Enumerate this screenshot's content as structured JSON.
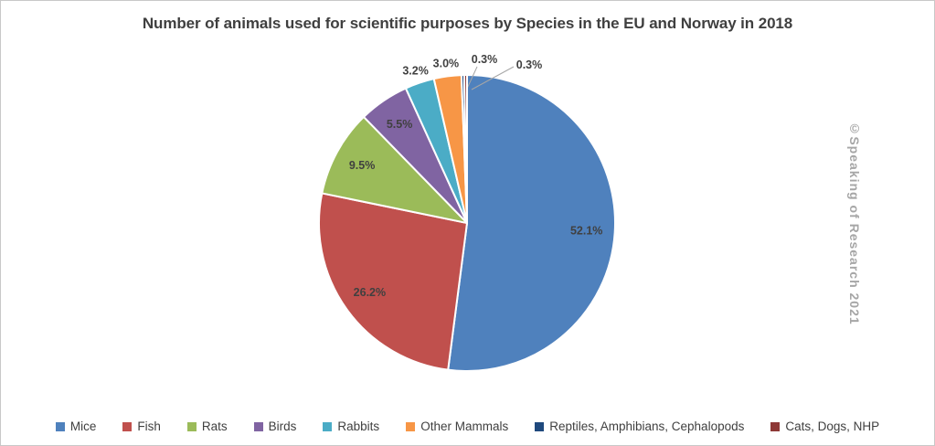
{
  "title": "Number of animals used for scientific purposes by Species in the EU and Norway in 2018",
  "watermark": "©Speaking of Research 2021",
  "colors": {
    "background": "#FFFFFF",
    "border": "#C8C8C8",
    "title": "#3F3F3F",
    "label": "#404040",
    "leader": "#A6A6A6",
    "watermark": "#A6A6A6",
    "slice_separator": "#FFFFFF"
  },
  "chart_data": {
    "type": "pie",
    "title": "Number of animals used for scientific purposes by Species in the EU and Norway in 2018",
    "start_angle_deg": 0,
    "direction": "clockwise",
    "legend_position": "bottom",
    "slices": [
      {
        "label": "Mice",
        "value_pct": 52.1,
        "display": "52.1%",
        "color": "#4F81BD",
        "label_placement": "inside"
      },
      {
        "label": "Fish",
        "value_pct": 26.2,
        "display": "26.2%",
        "color": "#C0504D",
        "label_placement": "inside"
      },
      {
        "label": "Rats",
        "value_pct": 9.5,
        "display": "9.5%",
        "color": "#9BBB59",
        "label_placement": "inside"
      },
      {
        "label": "Birds",
        "value_pct": 5.5,
        "display": "5.5%",
        "color": "#8064A2",
        "label_placement": "inside"
      },
      {
        "label": "Rabbits",
        "value_pct": 3.2,
        "display": "3.2%",
        "color": "#4BACC6",
        "label_placement": "outside"
      },
      {
        "label": "Other Mammals",
        "value_pct": 3.0,
        "display": "3.0%",
        "color": "#F79646",
        "label_placement": "outside"
      },
      {
        "label": "Reptiles, Amphibians, Cephalopods",
        "value_pct": 0.3,
        "display": "0.3%",
        "color": "#1F497D",
        "label_placement": "callout"
      },
      {
        "label": "Cats, Dogs, NHP",
        "value_pct": 0.3,
        "display": "0.3%",
        "color": "#8E3836",
        "label_placement": "callout"
      }
    ]
  }
}
